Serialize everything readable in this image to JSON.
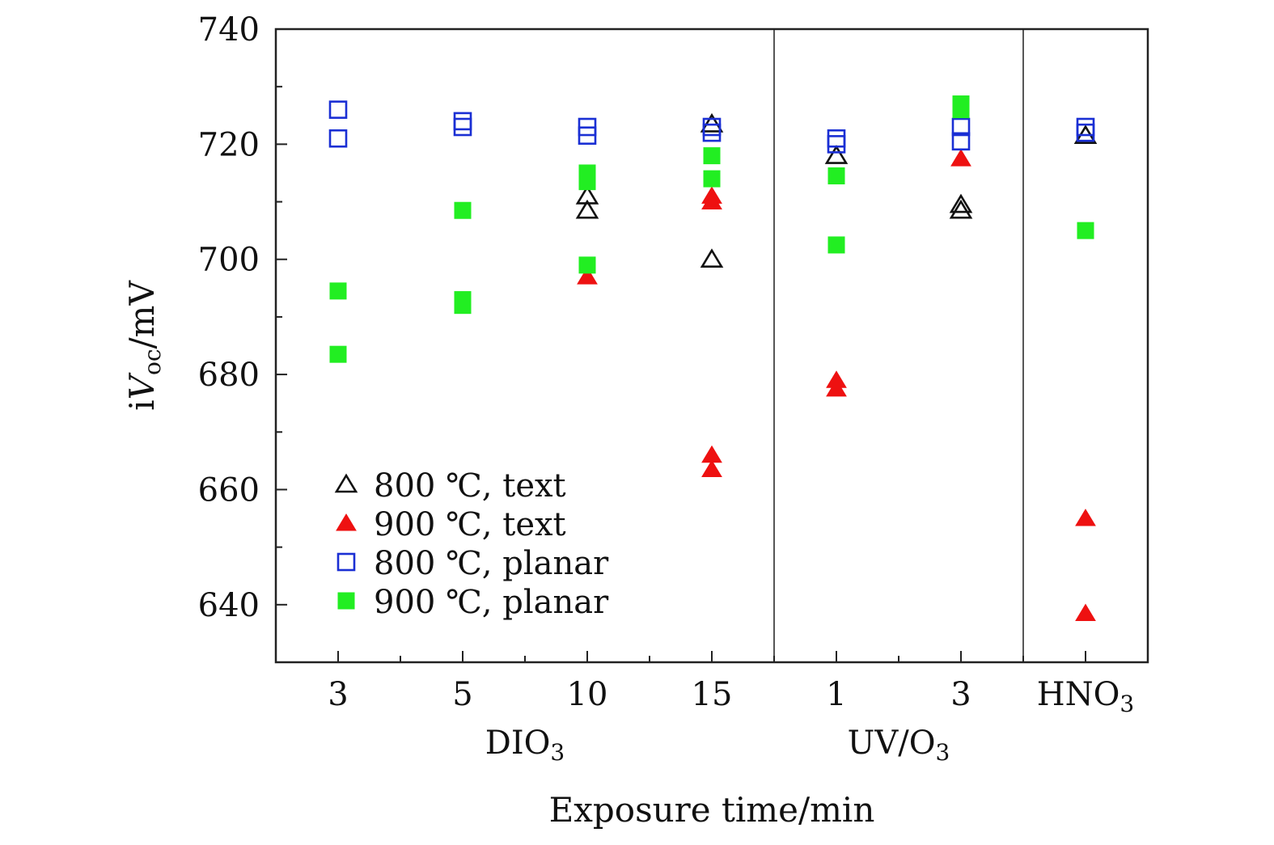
{
  "chart_data": {
    "type": "scatter",
    "title": "",
    "ylabel_prefix": "i",
    "ylabel_var": "V",
    "ylabel_sub": "oc",
    "ylabel_unit": "/mV",
    "xlabel": "Exposure time/min",
    "ylim": [
      630,
      740
    ],
    "yticks": [
      640,
      660,
      680,
      700,
      720,
      740
    ],
    "categories": [
      {
        "label": "3",
        "group": "DIO3"
      },
      {
        "label": "5",
        "group": "DIO3"
      },
      {
        "label": "10",
        "group": "DIO3"
      },
      {
        "label": "15",
        "group": "DIO3"
      },
      {
        "label": "1",
        "group": "UV/O3"
      },
      {
        "label": "3",
        "group": "UV/O3"
      },
      {
        "label": "HNO",
        "sub": "3",
        "group": "HNO3"
      }
    ],
    "groups": [
      {
        "label": "DIO",
        "sub": "3",
        "center": 1.5
      },
      {
        "label": "UV/O",
        "sub": "3",
        "center": 4.5
      }
    ],
    "dividers": [
      3.5,
      5.5
    ],
    "series": [
      {
        "name": "800 ℃, text",
        "marker": "triangle-open",
        "color": "#111111",
        "points": [
          [
            2,
            711
          ],
          [
            2,
            708.5
          ],
          [
            3,
            723.5
          ],
          [
            3,
            700
          ],
          [
            4,
            718
          ],
          [
            5,
            709.5
          ],
          [
            5,
            708.5
          ],
          [
            6,
            721.5
          ]
        ]
      },
      {
        "name": "900 ℃, text",
        "marker": "triangle-filled",
        "color": "#ee1111",
        "points": [
          [
            2,
            697
          ],
          [
            3,
            711
          ],
          [
            3,
            710
          ],
          [
            3,
            666
          ],
          [
            3,
            663.5
          ],
          [
            4,
            679
          ],
          [
            4,
            677.5
          ],
          [
            5,
            717.5
          ],
          [
            6,
            655
          ],
          [
            6,
            638.5
          ]
        ]
      },
      {
        "name": "800 ℃, planar",
        "marker": "square-open",
        "color": "#1a2fd4",
        "points": [
          [
            0,
            726
          ],
          [
            0,
            721
          ],
          [
            1,
            724
          ],
          [
            1,
            723
          ],
          [
            2,
            723
          ],
          [
            2,
            721.5
          ],
          [
            3,
            723
          ],
          [
            3,
            722
          ],
          [
            4,
            721
          ],
          [
            4,
            720
          ],
          [
            5,
            723
          ],
          [
            5,
            720.5
          ],
          [
            6,
            723
          ],
          [
            6,
            722
          ]
        ]
      },
      {
        "name": "900 ℃, planar",
        "marker": "square-filled",
        "color": "#22ee22",
        "points": [
          [
            0,
            694.5
          ],
          [
            0,
            683.5
          ],
          [
            1,
            708.5
          ],
          [
            1,
            693
          ],
          [
            1,
            692
          ],
          [
            2,
            715
          ],
          [
            2,
            713.5
          ],
          [
            2,
            699
          ],
          [
            3,
            718
          ],
          [
            3,
            714
          ],
          [
            4,
            714.5
          ],
          [
            4,
            702.5
          ],
          [
            5,
            727
          ],
          [
            5,
            726
          ],
          [
            6,
            705
          ]
        ]
      }
    ]
  }
}
